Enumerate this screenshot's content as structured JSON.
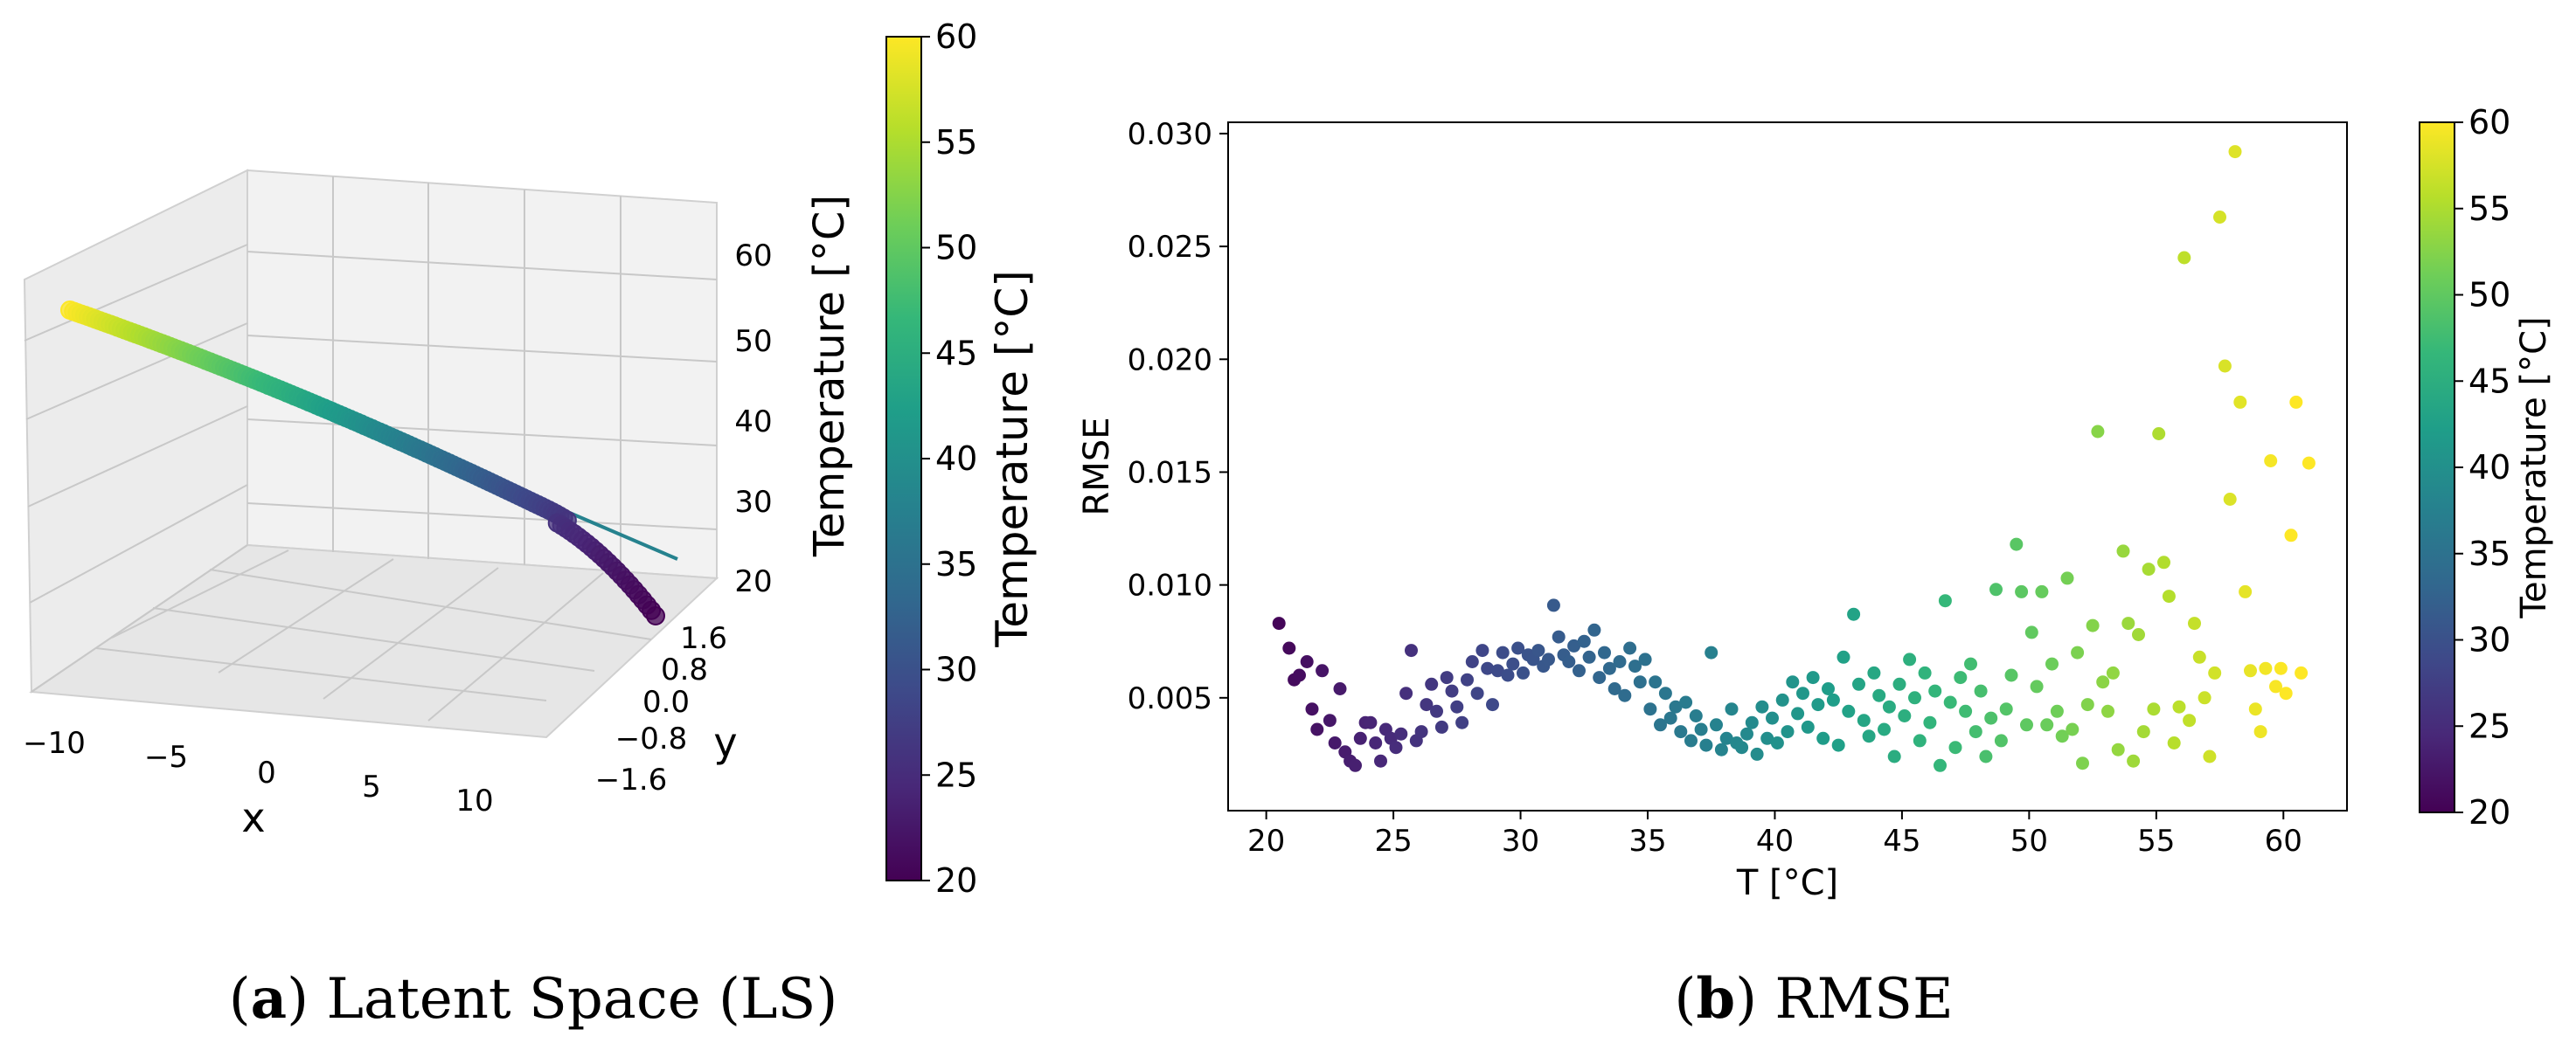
{
  "figure": {
    "panel_a": {
      "caption_prefix": "(",
      "caption_letter": "a",
      "caption_text": ") Latent Space (LS)"
    },
    "panel_b": {
      "caption_prefix": "(",
      "caption_letter": "b",
      "caption_text": ") RMSE"
    }
  },
  "colormap": {
    "name": "viridis",
    "stops": [
      "#440154",
      "#482878",
      "#3e4989",
      "#31688e",
      "#26828e",
      "#1f9e89",
      "#35b779",
      "#6ece58",
      "#b5de2b",
      "#fde725"
    ]
  },
  "chart_data": [
    {
      "type": "scatter3d",
      "title": "Latent Space (LS)",
      "xlabel": "x",
      "ylabel": "y",
      "zlabel": "Temperature [°C]",
      "xlim": [
        -12,
        12
      ],
      "ylim": [
        -2.0,
        2.0
      ],
      "zlim": [
        18,
        64
      ],
      "xticks": [
        "−10",
        "−5",
        "0",
        "5",
        "10"
      ],
      "yticks": [
        "−1.6",
        "−0.8",
        "0.0",
        "0.8",
        "1.6"
      ],
      "zticks": [
        "20",
        "30",
        "40",
        "50",
        "60"
      ],
      "colorbar": {
        "label": "Temperature [°C]",
        "range": [
          20,
          60
        ],
        "ticks": [
          "20",
          "25",
          "30",
          "35",
          "40",
          "45",
          "50",
          "55",
          "60"
        ]
      },
      "curve": {
        "x_range": [
          -12,
          11
        ],
        "z_range": [
          60,
          20
        ],
        "y_range": [
          1.6,
          -1.6
        ]
      }
    },
    {
      "type": "scatter",
      "title": "RMSE",
      "xlabel": "T [°C]",
      "ylabel": "RMSE",
      "xlim": [
        18.5,
        62.5
      ],
      "ylim": [
        0.0,
        0.0305
      ],
      "xticks": [
        "20",
        "25",
        "30",
        "35",
        "40",
        "45",
        "50",
        "55",
        "60"
      ],
      "yticks": [
        "0.005",
        "0.010",
        "0.015",
        "0.020",
        "0.025",
        "0.030"
      ],
      "colorbar": {
        "label": "Temperature [°C]",
        "range": [
          20,
          60
        ],
        "ticks": [
          "20",
          "25",
          "30",
          "35",
          "40",
          "45",
          "50",
          "55",
          "60"
        ]
      },
      "points": [
        [
          20.5,
          0.0083
        ],
        [
          20.9,
          0.0072
        ],
        [
          21.1,
          0.0058
        ],
        [
          21.3,
          0.006
        ],
        [
          21.6,
          0.0066
        ],
        [
          21.8,
          0.0045
        ],
        [
          22.0,
          0.0036
        ],
        [
          22.2,
          0.0062
        ],
        [
          22.5,
          0.004
        ],
        [
          22.7,
          0.003
        ],
        [
          22.9,
          0.0054
        ],
        [
          23.1,
          0.0026
        ],
        [
          23.3,
          0.0022
        ],
        [
          23.5,
          0.002
        ],
        [
          23.7,
          0.0032
        ],
        [
          23.9,
          0.0039
        ],
        [
          24.1,
          0.0039
        ],
        [
          24.3,
          0.003
        ],
        [
          24.5,
          0.0022
        ],
        [
          24.7,
          0.0036
        ],
        [
          24.9,
          0.0032
        ],
        [
          25.1,
          0.0028
        ],
        [
          25.3,
          0.0034
        ],
        [
          25.5,
          0.0052
        ],
        [
          25.7,
          0.0071
        ],
        [
          25.9,
          0.0031
        ],
        [
          26.1,
          0.0035
        ],
        [
          26.3,
          0.0047
        ],
        [
          26.5,
          0.0056
        ],
        [
          26.7,
          0.0044
        ],
        [
          26.9,
          0.0037
        ],
        [
          27.1,
          0.0059
        ],
        [
          27.3,
          0.0053
        ],
        [
          27.5,
          0.0046
        ],
        [
          27.7,
          0.0039
        ],
        [
          27.9,
          0.0058
        ],
        [
          28.1,
          0.0066
        ],
        [
          28.3,
          0.0052
        ],
        [
          28.5,
          0.0071
        ],
        [
          28.7,
          0.0063
        ],
        [
          28.9,
          0.0047
        ],
        [
          29.1,
          0.0062
        ],
        [
          29.3,
          0.007
        ],
        [
          29.5,
          0.006
        ],
        [
          29.7,
          0.0065
        ],
        [
          29.9,
          0.0072
        ],
        [
          30.1,
          0.0061
        ],
        [
          30.3,
          0.0069
        ],
        [
          30.5,
          0.0067
        ],
        [
          30.7,
          0.0071
        ],
        [
          30.9,
          0.0064
        ],
        [
          31.1,
          0.0067
        ],
        [
          31.3,
          0.0091
        ],
        [
          31.5,
          0.0077
        ],
        [
          31.7,
          0.0069
        ],
        [
          31.9,
          0.0066
        ],
        [
          32.1,
          0.0073
        ],
        [
          32.3,
          0.0062
        ],
        [
          32.5,
          0.0075
        ],
        [
          32.7,
          0.0068
        ],
        [
          32.9,
          0.008
        ],
        [
          33.1,
          0.0059
        ],
        [
          33.3,
          0.007
        ],
        [
          33.5,
          0.0063
        ],
        [
          33.7,
          0.0054
        ],
        [
          33.9,
          0.0066
        ],
        [
          34.1,
          0.0051
        ],
        [
          34.3,
          0.0072
        ],
        [
          34.5,
          0.0064
        ],
        [
          34.7,
          0.0057
        ],
        [
          34.9,
          0.0067
        ],
        [
          35.1,
          0.0045
        ],
        [
          35.3,
          0.0057
        ],
        [
          35.5,
          0.0038
        ],
        [
          35.7,
          0.0052
        ],
        [
          35.9,
          0.0041
        ],
        [
          36.1,
          0.0046
        ],
        [
          36.3,
          0.0035
        ],
        [
          36.5,
          0.0048
        ],
        [
          36.7,
          0.0031
        ],
        [
          36.9,
          0.0042
        ],
        [
          37.1,
          0.0036
        ],
        [
          37.3,
          0.0029
        ],
        [
          37.5,
          0.007
        ],
        [
          37.7,
          0.0038
        ],
        [
          37.9,
          0.0027
        ],
        [
          38.1,
          0.0032
        ],
        [
          38.3,
          0.0045
        ],
        [
          38.5,
          0.003
        ],
        [
          38.7,
          0.0028
        ],
        [
          38.9,
          0.0034
        ],
        [
          39.1,
          0.0039
        ],
        [
          39.3,
          0.0025
        ],
        [
          39.5,
          0.0046
        ],
        [
          39.7,
          0.0032
        ],
        [
          39.9,
          0.0041
        ],
        [
          40.1,
          0.003
        ],
        [
          40.3,
          0.0049
        ],
        [
          40.5,
          0.0035
        ],
        [
          40.7,
          0.0057
        ],
        [
          40.9,
          0.0043
        ],
        [
          41.1,
          0.0052
        ],
        [
          41.3,
          0.0037
        ],
        [
          41.5,
          0.0059
        ],
        [
          41.7,
          0.0047
        ],
        [
          41.9,
          0.0032
        ],
        [
          42.1,
          0.0054
        ],
        [
          42.3,
          0.0049
        ],
        [
          42.5,
          0.0029
        ],
        [
          42.7,
          0.0068
        ],
        [
          42.9,
          0.0044
        ],
        [
          43.1,
          0.0087
        ],
        [
          43.3,
          0.0056
        ],
        [
          43.5,
          0.004
        ],
        [
          43.7,
          0.0033
        ],
        [
          43.9,
          0.0061
        ],
        [
          44.1,
          0.0051
        ],
        [
          44.3,
          0.0036
        ],
        [
          44.5,
          0.0046
        ],
        [
          44.7,
          0.0024
        ],
        [
          44.9,
          0.0056
        ],
        [
          45.1,
          0.0042
        ],
        [
          45.3,
          0.0067
        ],
        [
          45.5,
          0.005
        ],
        [
          45.7,
          0.0031
        ],
        [
          45.9,
          0.0061
        ],
        [
          46.1,
          0.0039
        ],
        [
          46.3,
          0.0053
        ],
        [
          46.5,
          0.002
        ],
        [
          46.7,
          0.0093
        ],
        [
          46.9,
          0.0048
        ],
        [
          47.1,
          0.0028
        ],
        [
          47.3,
          0.0059
        ],
        [
          47.5,
          0.0044
        ],
        [
          47.7,
          0.0065
        ],
        [
          47.9,
          0.0035
        ],
        [
          48.1,
          0.0053
        ],
        [
          48.3,
          0.0024
        ],
        [
          48.5,
          0.0041
        ],
        [
          48.7,
          0.0098
        ],
        [
          48.9,
          0.0031
        ],
        [
          49.1,
          0.0045
        ],
        [
          49.3,
          0.006
        ],
        [
          49.5,
          0.0118
        ],
        [
          49.7,
          0.0097
        ],
        [
          49.9,
          0.0038
        ],
        [
          50.1,
          0.0079
        ],
        [
          50.3,
          0.0055
        ],
        [
          50.5,
          0.0097
        ],
        [
          50.7,
          0.0038
        ],
        [
          50.9,
          0.0065
        ],
        [
          51.1,
          0.0044
        ],
        [
          51.3,
          0.0033
        ],
        [
          51.5,
          0.0103
        ],
        [
          51.7,
          0.0036
        ],
        [
          51.9,
          0.007
        ],
        [
          52.1,
          0.0021
        ],
        [
          52.3,
          0.0047
        ],
        [
          52.5,
          0.0082
        ],
        [
          52.7,
          0.0168
        ],
        [
          52.9,
          0.0057
        ],
        [
          53.1,
          0.0044
        ],
        [
          53.3,
          0.0061
        ],
        [
          53.5,
          0.0027
        ],
        [
          53.7,
          0.0115
        ],
        [
          53.9,
          0.0083
        ],
        [
          54.1,
          0.0022
        ],
        [
          54.3,
          0.0078
        ],
        [
          54.5,
          0.0035
        ],
        [
          54.7,
          0.0107
        ],
        [
          54.9,
          0.0045
        ],
        [
          55.1,
          0.0167
        ],
        [
          55.3,
          0.011
        ],
        [
          55.5,
          0.0095
        ],
        [
          55.7,
          0.003
        ],
        [
          55.9,
          0.0046
        ],
        [
          56.1,
          0.0245
        ],
        [
          56.3,
          0.004
        ],
        [
          56.5,
          0.0083
        ],
        [
          56.7,
          0.0068
        ],
        [
          56.9,
          0.005
        ],
        [
          57.1,
          0.0024
        ],
        [
          57.3,
          0.0061
        ],
        [
          57.5,
          0.0263
        ],
        [
          57.7,
          0.0197
        ],
        [
          57.9,
          0.0138
        ],
        [
          58.1,
          0.0292
        ],
        [
          58.3,
          0.0181
        ],
        [
          58.5,
          0.0097
        ],
        [
          58.7,
          0.0062
        ],
        [
          58.9,
          0.0045
        ],
        [
          59.1,
          0.0035
        ],
        [
          59.3,
          0.0063
        ],
        [
          59.5,
          0.0155
        ],
        [
          59.7,
          0.0055
        ],
        [
          59.9,
          0.0063
        ],
        [
          60.1,
          0.0052
        ],
        [
          60.3,
          0.0122
        ],
        [
          60.5,
          0.0181
        ],
        [
          60.7,
          0.0061
        ],
        [
          61.0,
          0.0154
        ]
      ]
    }
  ]
}
